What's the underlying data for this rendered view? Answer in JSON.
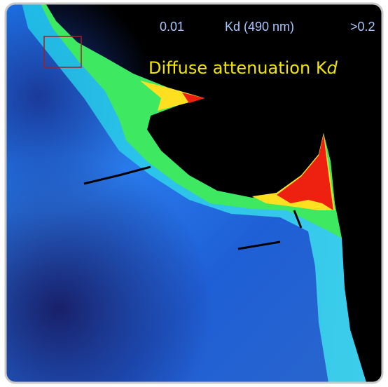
{
  "legend": {
    "min": "0.01",
    "label": "Kd (490 nm)",
    "max": ">0.2"
  },
  "title": {
    "text": "Diffuse attenuation K",
    "italic": "d"
  }
}
